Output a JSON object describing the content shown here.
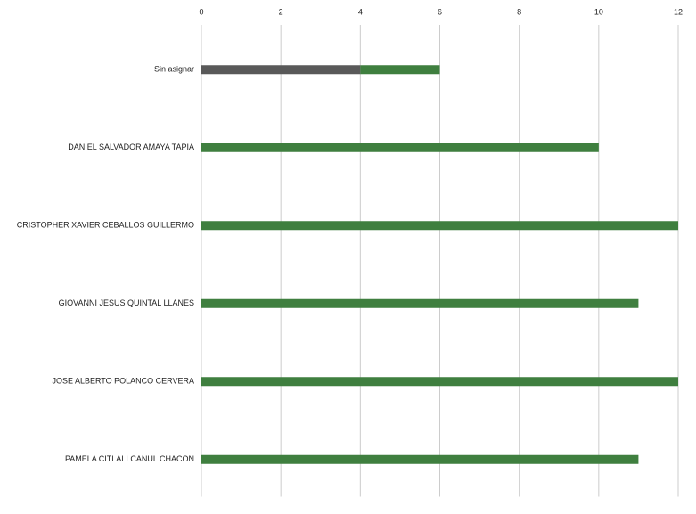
{
  "chart_data": {
    "type": "stacked_barh",
    "categories": [
      "Sin asignar",
      "DANIEL SALVADOR AMAYA TAPIA",
      "CRISTOPHER XAVIER CEBALLOS GUILLERMO",
      "GIOVANNI JESUS QUINTAL LLANES",
      "JOSE ALBERTO POLANCO CERVERA",
      "PAMELA CITLALI CANUL CHACON"
    ],
    "series": [
      {
        "color": "#595959",
        "values": [
          4,
          0,
          0,
          0,
          0,
          0
        ]
      },
      {
        "color": "#3f7f3f",
        "values": [
          2,
          10,
          12,
          11,
          12,
          11
        ]
      }
    ],
    "xlim": [
      0,
      12
    ],
    "xticks": [
      0,
      2,
      4,
      6,
      8,
      10,
      12
    ],
    "grid": true
  }
}
